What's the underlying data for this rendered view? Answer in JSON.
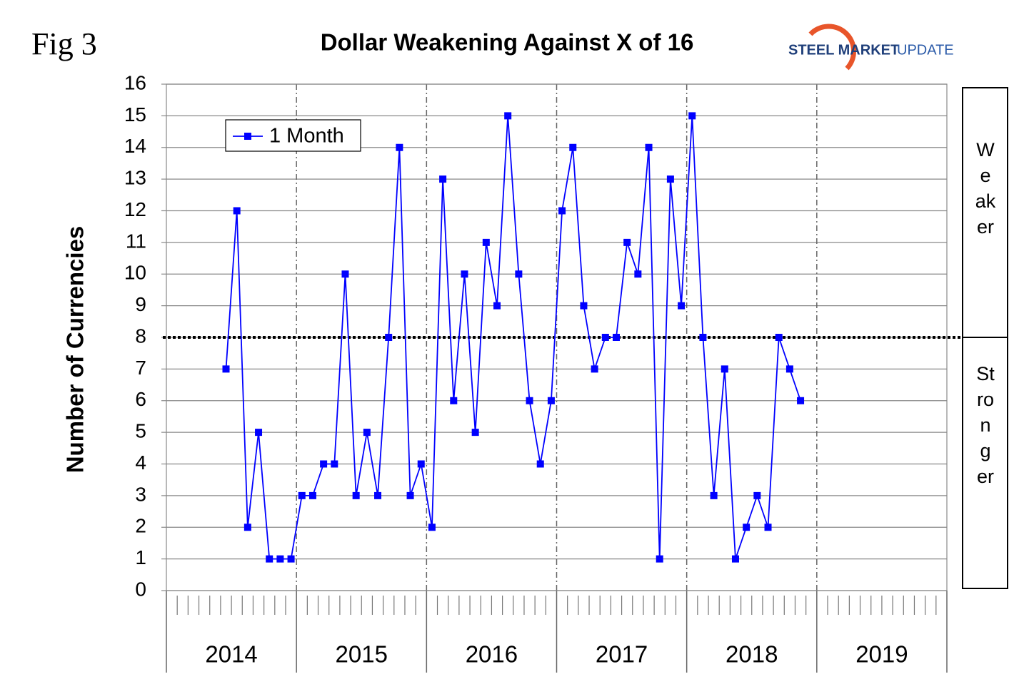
{
  "chart_data": {
    "type": "line",
    "title": "Dollar Weakening Against X of 16",
    "figure_label": "Fig 3",
    "logo": {
      "brand": "STEEL MARKET",
      "brand_suffix": "UPDATE"
    },
    "y_label": "Number of Currencies",
    "groups": [
      "2014",
      "2015",
      "2016",
      "2017",
      "2018",
      "2019"
    ],
    "categories": [
      null,
      null,
      null,
      null,
      null,
      null,
      null,
      null,
      null,
      null,
      null,
      null,
      null,
      null,
      null,
      null,
      null,
      null,
      null,
      null,
      null,
      null,
      null,
      null,
      null,
      null,
      null,
      null,
      null,
      null,
      null,
      null,
      null,
      null,
      null,
      null,
      null,
      null,
      null,
      null,
      null,
      null,
      null,
      null,
      null,
      null,
      null,
      null,
      null,
      null,
      null,
      null,
      null,
      null,
      null,
      null,
      null,
      null,
      null,
      null,
      null,
      null,
      null,
      null,
      null,
      null,
      null,
      null,
      null,
      null,
      null,
      null
    ],
    "series": [
      {
        "name": "1 Month",
        "color": "#0000ff",
        "values": [
          null,
          null,
          null,
          null,
          null,
          7,
          12,
          2,
          5,
          1,
          1,
          1,
          3,
          3,
          4,
          4,
          10,
          3,
          5,
          3,
          8,
          14,
          3,
          4,
          2,
          13,
          6,
          10,
          5,
          11,
          9,
          15,
          10,
          6,
          4,
          6,
          12,
          14,
          9,
          7,
          8,
          8,
          11,
          10,
          14,
          1,
          13,
          9,
          15,
          8,
          3,
          7,
          1,
          2,
          3,
          2,
          8,
          7,
          6,
          null,
          null,
          null,
          null,
          null,
          null,
          null,
          null,
          null,
          null,
          null,
          null,
          null
        ]
      }
    ],
    "ylim": [
      0,
      16
    ],
    "yticks": [
      0,
      1,
      2,
      3,
      4,
      5,
      6,
      7,
      8,
      9,
      10,
      11,
      12,
      13,
      14,
      15,
      16
    ],
    "grid": true,
    "legend": "top-left",
    "reference_line": {
      "value": 8
    },
    "side_labels": {
      "upper": "Weaker",
      "lower": "Stronger"
    }
  }
}
